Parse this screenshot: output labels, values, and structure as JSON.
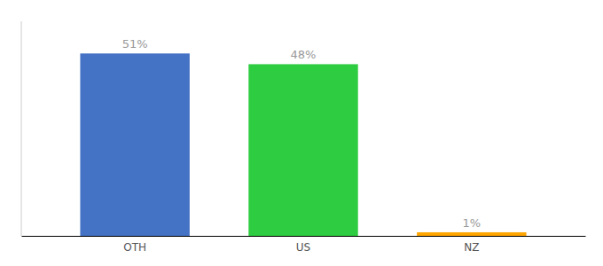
{
  "chart_data": {
    "type": "bar",
    "categories": [
      "OTH",
      "US",
      "NZ"
    ],
    "values": [
      51,
      48,
      1
    ],
    "value_labels": [
      "51%",
      "48%",
      "1%"
    ],
    "colors": [
      "#4472C4",
      "#2ECC40",
      "#FFA500"
    ],
    "ylim": [
      0,
      60
    ],
    "data_labels": true,
    "tick_labels": "x"
  }
}
